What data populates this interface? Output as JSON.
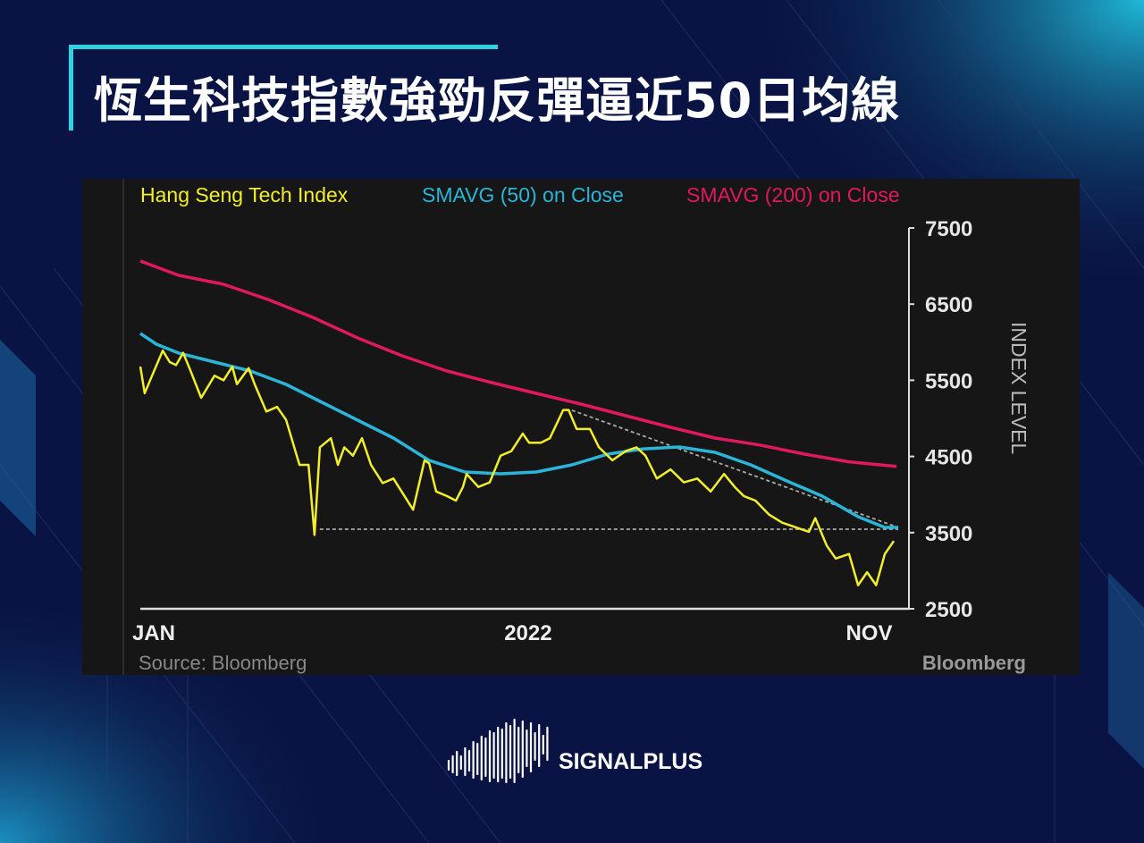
{
  "title": "恆生科技指數強勁反彈逼近50日均線",
  "brand": {
    "name": "SIGNALPLUS"
  },
  "colors": {
    "background": "#0a1444",
    "accent": "#2fd3e0",
    "index": "#f2ee2a",
    "sma50": "#2bb5d8",
    "sma200": "#e0195f",
    "chart_bg": "#161616"
  },
  "chart_data": {
    "type": "line",
    "title": "",
    "xlabel": "",
    "ylabel": "INDEX LEVEL",
    "x_unit": "months since Jan 2021",
    "xlim": [
      0,
      22.67
    ],
    "ylim": [
      2500,
      7500
    ],
    "yticks": [
      2500,
      3500,
      4500,
      5500,
      6500,
      7500
    ],
    "xticks": [
      {
        "x": 0.4,
        "label": "JAN"
      },
      {
        "x": 11.6,
        "label": "2022"
      },
      {
        "x": 21.8,
        "label": "NOV"
      }
    ],
    "source": "Source: Bloomberg",
    "watermark": "Bloomberg",
    "legend_position": "top-left",
    "series": [
      {
        "name": "Hang Seng Tech Index",
        "color": "#f2ee2a",
        "x": [
          0,
          0.13,
          0.35,
          0.67,
          0.88,
          1.07,
          1.28,
          1.47,
          1.82,
          2.22,
          2.49,
          2.75,
          2.89,
          3.24,
          3.42,
          3.77,
          4.09,
          4.36,
          4.76,
          5.03,
          5.21,
          5.37,
          5.7,
          5.91,
          6.1,
          6.36,
          6.63,
          6.9,
          7.25,
          7.57,
          8.16,
          8.5,
          8.64,
          8.85,
          9.17,
          9.44,
          9.65,
          9.76,
          10.11,
          10.45,
          10.78,
          11.1,
          11.44,
          11.63,
          11.98,
          12.25,
          12.65,
          12.81,
          13.05,
          13.45,
          13.72,
          14.12,
          14.52,
          14.84,
          15.11,
          15.45,
          15.86,
          16.26,
          16.66,
          17.06,
          17.46,
          17.78,
          18.05,
          18.4,
          18.8,
          19.2,
          19.6,
          20.0,
          20.19,
          20.53,
          20.8,
          21.2,
          21.47,
          21.74,
          22.01,
          22.27,
          22.54
        ],
        "y": [
          5680,
          5330,
          5560,
          5890,
          5740,
          5700,
          5860,
          5660,
          5270,
          5560,
          5500,
          5680,
          5450,
          5660,
          5450,
          5090,
          5150,
          4980,
          4390,
          4390,
          3470,
          4620,
          4740,
          4390,
          4620,
          4510,
          4740,
          4390,
          4150,
          4210,
          3800,
          4450,
          4410,
          4040,
          3980,
          3920,
          4100,
          4270,
          4100,
          4160,
          4510,
          4570,
          4800,
          4680,
          4680,
          4740,
          5110,
          5110,
          4860,
          4860,
          4620,
          4450,
          4570,
          4620,
          4510,
          4210,
          4330,
          4160,
          4210,
          4040,
          4270,
          4100,
          3980,
          3920,
          3740,
          3630,
          3570,
          3510,
          3690,
          3330,
          3160,
          3220,
          2810,
          2980,
          2810,
          3220,
          3390
        ]
      },
      {
        "name": "SMAVG (50) on Close",
        "color": "#2bb5d8",
        "x": [
          0,
          0.48,
          1.15,
          2.22,
          3.29,
          4.36,
          5.43,
          6.5,
          7.57,
          8.64,
          9.71,
          10.78,
          11.84,
          12.91,
          13.98,
          15.05,
          16.12,
          17.19,
          18.26,
          19.33,
          20.4,
          21.47,
          22.27,
          22.67
        ],
        "y": [
          6115,
          5974,
          5857,
          5739,
          5622,
          5446,
          5211,
          4977,
          4742,
          4448,
          4296,
          4272,
          4296,
          4390,
          4530,
          4600,
          4624,
          4554,
          4390,
          4179,
          3979,
          3709,
          3568,
          3568
        ]
      },
      {
        "name": "SMAVG (200) on Close",
        "color": "#e0195f",
        "x": [
          0,
          1.15,
          2.49,
          3.82,
          5.16,
          6.5,
          7.83,
          9.17,
          10.51,
          11.84,
          13.18,
          14.52,
          15.86,
          17.19,
          18.53,
          19.87,
          21.2,
          22.62
        ],
        "y": [
          7066,
          6878,
          6761,
          6561,
          6326,
          6056,
          5822,
          5622,
          5470,
          5329,
          5188,
          5035,
          4883,
          4742,
          4650,
          4530,
          4430,
          4370
        ]
      }
    ],
    "annotations": [
      {
        "type": "dashed",
        "name": "support-line",
        "x": [
          5.37,
          22.67
        ],
        "y": [
          3545,
          3545
        ]
      },
      {
        "type": "dashed",
        "name": "downtrend-line",
        "x": [
          12.91,
          22.67
        ],
        "y": [
          5106,
          3568
        ]
      }
    ]
  }
}
